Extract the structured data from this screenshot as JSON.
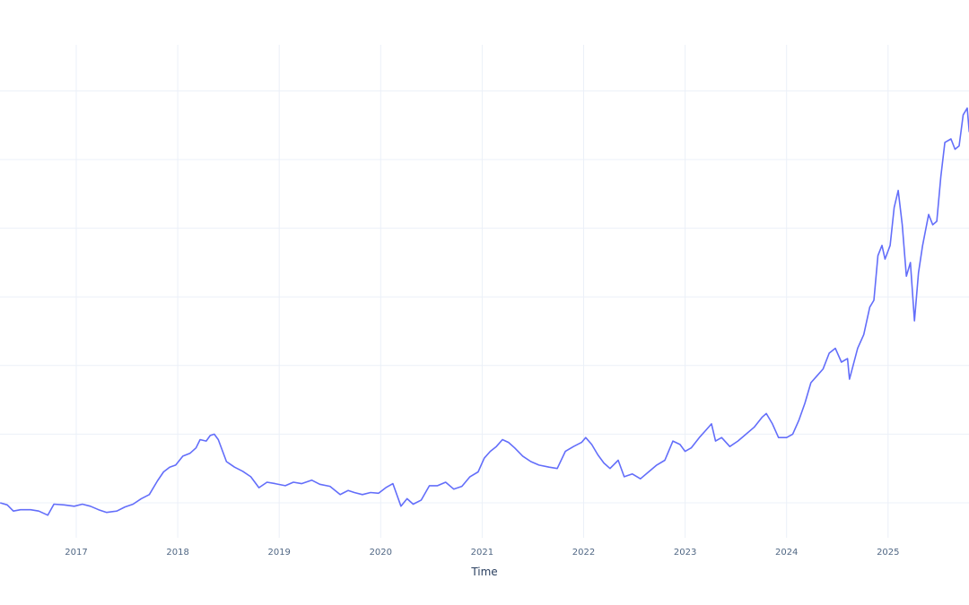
{
  "chart_data": {
    "type": "line",
    "title": "",
    "xlabel": "Time",
    "ylabel": "",
    "x_ticks": [
      "2017",
      "2018",
      "2019",
      "2020",
      "2021",
      "2022",
      "2023",
      "2024",
      "2025"
    ],
    "y_ticks_note": "y-axis tick labels not visible (clipped); values below are in gridline units (0 = lowest gridline, 6 = highest)",
    "y_gridlines": [
      0,
      1,
      2,
      3,
      4,
      5,
      6
    ],
    "xlim": [
      2016.25,
      2025.8
    ],
    "ylim": [
      -0.5,
      6.6
    ],
    "grid": true,
    "legend": false,
    "line_color": "#636efa",
    "series": [
      {
        "name": "value",
        "points": [
          [
            2016.25,
            0.0
          ],
          [
            2016.32,
            -0.03
          ],
          [
            2016.38,
            -0.12
          ],
          [
            2016.45,
            -0.1
          ],
          [
            2016.55,
            -0.1
          ],
          [
            2016.63,
            -0.12
          ],
          [
            2016.72,
            -0.18
          ],
          [
            2016.78,
            -0.02
          ],
          [
            2016.88,
            -0.03
          ],
          [
            2016.98,
            -0.05
          ],
          [
            2017.06,
            -0.02
          ],
          [
            2017.14,
            -0.05
          ],
          [
            2017.22,
            -0.1
          ],
          [
            2017.3,
            -0.14
          ],
          [
            2017.4,
            -0.12
          ],
          [
            2017.48,
            -0.06
          ],
          [
            2017.56,
            -0.02
          ],
          [
            2017.64,
            0.06
          ],
          [
            2017.72,
            0.12
          ],
          [
            2017.8,
            0.32
          ],
          [
            2017.86,
            0.45
          ],
          [
            2017.92,
            0.52
          ],
          [
            2017.98,
            0.55
          ],
          [
            2018.05,
            0.68
          ],
          [
            2018.12,
            0.72
          ],
          [
            2018.18,
            0.8
          ],
          [
            2018.22,
            0.92
          ],
          [
            2018.28,
            0.9
          ],
          [
            2018.32,
            0.98
          ],
          [
            2018.36,
            1.0
          ],
          [
            2018.4,
            0.92
          ],
          [
            2018.48,
            0.6
          ],
          [
            2018.56,
            0.52
          ],
          [
            2018.64,
            0.46
          ],
          [
            2018.72,
            0.38
          ],
          [
            2018.8,
            0.22
          ],
          [
            2018.88,
            0.3
          ],
          [
            2018.96,
            0.28
          ],
          [
            2019.06,
            0.25
          ],
          [
            2019.14,
            0.3
          ],
          [
            2019.22,
            0.28
          ],
          [
            2019.32,
            0.33
          ],
          [
            2019.4,
            0.27
          ],
          [
            2019.5,
            0.24
          ],
          [
            2019.6,
            0.12
          ],
          [
            2019.68,
            0.18
          ],
          [
            2019.74,
            0.15
          ],
          [
            2019.82,
            0.12
          ],
          [
            2019.9,
            0.15
          ],
          [
            2019.98,
            0.14
          ],
          [
            2020.05,
            0.22
          ],
          [
            2020.12,
            0.28
          ],
          [
            2020.2,
            -0.05
          ],
          [
            2020.26,
            0.06
          ],
          [
            2020.32,
            -0.02
          ],
          [
            2020.4,
            0.04
          ],
          [
            2020.48,
            0.25
          ],
          [
            2020.56,
            0.25
          ],
          [
            2020.64,
            0.3
          ],
          [
            2020.72,
            0.2
          ],
          [
            2020.8,
            0.24
          ],
          [
            2020.88,
            0.38
          ],
          [
            2020.96,
            0.45
          ],
          [
            2021.02,
            0.65
          ],
          [
            2021.08,
            0.75
          ],
          [
            2021.14,
            0.82
          ],
          [
            2021.2,
            0.92
          ],
          [
            2021.26,
            0.88
          ],
          [
            2021.32,
            0.8
          ],
          [
            2021.4,
            0.68
          ],
          [
            2021.48,
            0.6
          ],
          [
            2021.56,
            0.55
          ],
          [
            2021.66,
            0.52
          ],
          [
            2021.74,
            0.5
          ],
          [
            2021.82,
            0.75
          ],
          [
            2021.9,
            0.82
          ],
          [
            2021.98,
            0.88
          ],
          [
            2022.02,
            0.95
          ],
          [
            2022.08,
            0.85
          ],
          [
            2022.14,
            0.7
          ],
          [
            2022.2,
            0.58
          ],
          [
            2022.26,
            0.5
          ],
          [
            2022.34,
            0.62
          ],
          [
            2022.4,
            0.38
          ],
          [
            2022.48,
            0.42
          ],
          [
            2022.56,
            0.35
          ],
          [
            2022.64,
            0.45
          ],
          [
            2022.72,
            0.55
          ],
          [
            2022.8,
            0.62
          ],
          [
            2022.88,
            0.9
          ],
          [
            2022.95,
            0.85
          ],
          [
            2023.0,
            0.75
          ],
          [
            2023.06,
            0.8
          ],
          [
            2023.14,
            0.95
          ],
          [
            2023.2,
            1.05
          ],
          [
            2023.26,
            1.15
          ],
          [
            2023.3,
            0.9
          ],
          [
            2023.36,
            0.95
          ],
          [
            2023.44,
            0.82
          ],
          [
            2023.52,
            0.9
          ],
          [
            2023.6,
            1.0
          ],
          [
            2023.68,
            1.1
          ],
          [
            2023.76,
            1.25
          ],
          [
            2023.8,
            1.3
          ],
          [
            2023.86,
            1.15
          ],
          [
            2023.92,
            0.95
          ],
          [
            2024.0,
            0.95
          ],
          [
            2024.06,
            1.0
          ],
          [
            2024.12,
            1.2
          ],
          [
            2024.18,
            1.45
          ],
          [
            2024.24,
            1.75
          ],
          [
            2024.3,
            1.85
          ],
          [
            2024.36,
            1.95
          ],
          [
            2024.42,
            2.18
          ],
          [
            2024.48,
            2.25
          ],
          [
            2024.54,
            2.05
          ],
          [
            2024.6,
            2.1
          ],
          [
            2024.62,
            1.8
          ],
          [
            2024.7,
            2.25
          ],
          [
            2024.76,
            2.45
          ],
          [
            2024.82,
            2.85
          ],
          [
            2024.86,
            2.95
          ],
          [
            2024.9,
            3.6
          ],
          [
            2024.94,
            3.75
          ],
          [
            2024.97,
            3.55
          ],
          [
            2025.02,
            3.75
          ],
          [
            2025.06,
            4.3
          ],
          [
            2025.1,
            4.55
          ],
          [
            2025.14,
            4.05
          ],
          [
            2025.18,
            3.3
          ],
          [
            2025.22,
            3.5
          ],
          [
            2025.26,
            2.65
          ],
          [
            2025.3,
            3.35
          ],
          [
            2025.34,
            3.75
          ],
          [
            2025.4,
            4.2
          ],
          [
            2025.44,
            4.05
          ],
          [
            2025.48,
            4.1
          ],
          [
            2025.52,
            4.75
          ],
          [
            2025.56,
            5.25
          ],
          [
            2025.62,
            5.3
          ],
          [
            2025.66,
            5.15
          ],
          [
            2025.7,
            5.2
          ],
          [
            2025.74,
            5.65
          ],
          [
            2025.78,
            5.75
          ],
          [
            2025.8,
            5.4
          ]
        ]
      }
    ]
  }
}
